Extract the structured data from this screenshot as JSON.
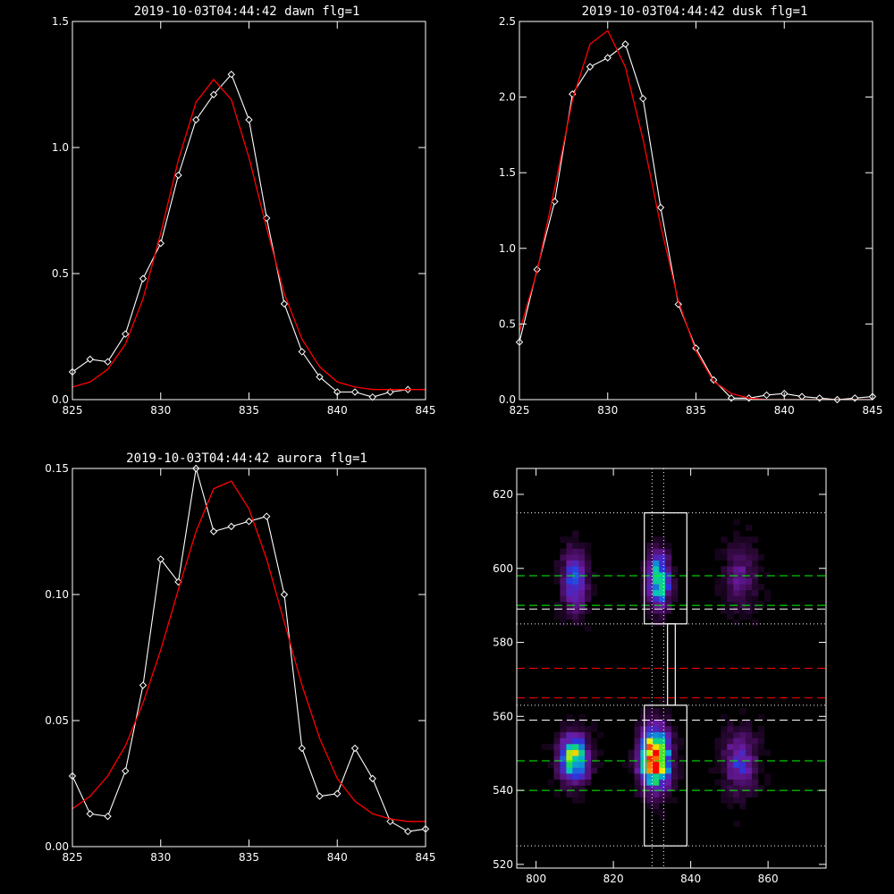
{
  "figure_background": "#000000",
  "chart_data": [
    {
      "type": "line",
      "title": "2019-10-03T04:44:42 dawn flg=1",
      "xlim": [
        825,
        845
      ],
      "ylim": [
        0,
        1.5
      ],
      "xticks": [
        825,
        830,
        835,
        840,
        845
      ],
      "yticks": [
        0.0,
        0.5,
        1.0,
        1.5
      ],
      "xtick_labels": [
        "825",
        "830",
        "835",
        "840",
        "845"
      ],
      "ytick_labels": [
        "0.0",
        "0.5",
        "1.0",
        "1.5"
      ],
      "series": [
        {
          "color": "#ffffff",
          "marker": "diamond",
          "x": [
            825,
            826,
            827,
            828,
            829,
            830,
            831,
            832,
            833,
            834,
            835,
            836,
            837,
            838,
            839,
            840,
            841,
            842,
            843,
            844
          ],
          "y": [
            0.11,
            0.16,
            0.15,
            0.26,
            0.48,
            0.62,
            0.89,
            1.11,
            1.21,
            1.29,
            1.11,
            0.72,
            0.38,
            0.19,
            0.09,
            0.03,
            0.03,
            0.01,
            0.03,
            0.04
          ]
        },
        {
          "color": "#ff0000",
          "x": [
            825,
            826,
            827,
            828,
            829,
            830,
            831,
            832,
            833,
            834,
            835,
            836,
            837,
            838,
            839,
            840,
            841,
            842,
            843,
            844,
            845
          ],
          "y": [
            0.05,
            0.07,
            0.12,
            0.22,
            0.4,
            0.66,
            0.95,
            1.18,
            1.27,
            1.19,
            0.96,
            0.68,
            0.42,
            0.24,
            0.13,
            0.07,
            0.05,
            0.04,
            0.04,
            0.04,
            0.04
          ]
        }
      ]
    },
    {
      "type": "line",
      "title": "2019-10-03T04:44:42 dusk flg=1",
      "xlim": [
        825,
        845
      ],
      "ylim": [
        0,
        2.5
      ],
      "xticks": [
        825,
        830,
        835,
        840,
        845
      ],
      "yticks": [
        0.0,
        0.5,
        1.0,
        1.5,
        2.0,
        2.5
      ],
      "xtick_labels": [
        "825",
        "830",
        "835",
        "840",
        "845"
      ],
      "ytick_labels": [
        "0.0",
        "0.5",
        "1.0",
        "1.5",
        "2.0",
        "2.5"
      ],
      "series": [
        {
          "color": "#ffffff",
          "marker": "diamond",
          "x": [
            825,
            826,
            827,
            828,
            829,
            830,
            831,
            832,
            833,
            834,
            835,
            836,
            837,
            838,
            839,
            840,
            841,
            842,
            843,
            844,
            845
          ],
          "y": [
            0.38,
            0.86,
            1.31,
            2.02,
            2.2,
            2.26,
            2.35,
            1.99,
            1.27,
            0.63,
            0.34,
            0.13,
            0.01,
            0.01,
            0.03,
            0.04,
            0.02,
            0.01,
            0.0,
            0.01,
            0.02
          ]
        },
        {
          "color": "#ff0000",
          "x": [
            825,
            826,
            827,
            828,
            829,
            830,
            831,
            832,
            833,
            834,
            835,
            836,
            837,
            838,
            839,
            840,
            841,
            842,
            843,
            844,
            845
          ],
          "y": [
            0.45,
            0.85,
            1.4,
            1.98,
            2.35,
            2.44,
            2.2,
            1.72,
            1.15,
            0.65,
            0.32,
            0.12,
            0.04,
            0.01,
            0.0,
            0.0,
            0.0,
            0.0,
            0.0,
            0.0,
            0.0
          ]
        }
      ]
    },
    {
      "type": "line",
      "title": "2019-10-03T04:44:42 aurora flg=1",
      "xlim": [
        825,
        845
      ],
      "ylim": [
        0,
        0.15
      ],
      "xticks": [
        825,
        830,
        835,
        840,
        845
      ],
      "yticks": [
        0.0,
        0.05,
        0.1,
        0.15
      ],
      "xtick_labels": [
        "825",
        "830",
        "835",
        "840",
        "845"
      ],
      "ytick_labels": [
        "0.00",
        "0.05",
        "0.10",
        "0.15"
      ],
      "series": [
        {
          "color": "#ffffff",
          "marker": "diamond",
          "x": [
            825,
            826,
            827,
            828,
            829,
            830,
            831,
            832,
            833,
            834,
            835,
            836,
            837,
            838,
            839,
            840,
            841,
            842,
            843,
            844,
            845
          ],
          "y": [
            0.028,
            0.013,
            0.012,
            0.03,
            0.064,
            0.114,
            0.105,
            0.15,
            0.125,
            0.127,
            0.129,
            0.131,
            0.1,
            0.039,
            0.02,
            0.021,
            0.039,
            0.027,
            0.01,
            0.006,
            0.007
          ]
        },
        {
          "color": "#ff0000",
          "x": [
            825,
            826,
            827,
            828,
            829,
            830,
            831,
            832,
            833,
            834,
            835,
            836,
            837,
            838,
            839,
            840,
            841,
            842,
            843,
            844,
            845
          ],
          "y": [
            0.015,
            0.02,
            0.028,
            0.04,
            0.057,
            0.078,
            0.102,
            0.125,
            0.142,
            0.145,
            0.134,
            0.114,
            0.089,
            0.064,
            0.043,
            0.027,
            0.018,
            0.013,
            0.011,
            0.01,
            0.01
          ]
        }
      ]
    },
    {
      "type": "heatmap",
      "title": "",
      "xlim": [
        795,
        875
      ],
      "ylim": [
        519,
        627
      ],
      "xticks": [
        800,
        820,
        840,
        860
      ],
      "yticks": [
        520,
        540,
        560,
        580,
        600,
        620
      ],
      "xtick_labels": [
        "800",
        "820",
        "840",
        "860"
      ],
      "ytick_labels": [
        "520",
        "540",
        "560",
        "580",
        "600",
        "620"
      ],
      "colormap": [
        "#000000",
        "#3a0a4a",
        "#6a1aa0",
        "#2a36e0",
        "#00c0d0",
        "#20e040",
        "#f0f000",
        "#ff8000",
        "#ff0000"
      ],
      "pixel_size": [
        1.6,
        1.6
      ],
      "blobs": [
        {
          "x": 809,
          "y": 548,
          "sx": 2.6,
          "sy": 4.5,
          "amp": 0.66
        },
        {
          "x": 809,
          "y": 596,
          "sx": 2.2,
          "sy": 5.5,
          "amp": 0.42
        },
        {
          "x": 830,
          "y": 548,
          "sx": 2.6,
          "sy": 5.5,
          "amp": 1.0
        },
        {
          "x": 831,
          "y": 596,
          "sx": 2.0,
          "sy": 5.0,
          "amp": 0.62
        },
        {
          "x": 852,
          "y": 547,
          "sx": 3.0,
          "sy": 6.0,
          "amp": 0.3
        },
        {
          "x": 852,
          "y": 597,
          "sx": 3.0,
          "sy": 6.0,
          "amp": 0.2
        }
      ],
      "rectangles": [
        {
          "x0": 828,
          "x1": 839,
          "y0": 585,
          "y1": 615,
          "color": "#ffffff"
        },
        {
          "x0": 828,
          "x1": 839,
          "y0": 525,
          "y1": 563,
          "color": "#ffffff"
        },
        {
          "x0": 834,
          "x1": 836,
          "y0": 563,
          "y1": 585,
          "color": "#ffffff"
        }
      ],
      "hlines": [
        {
          "y": 615,
          "color": "#ffffff",
          "style": "dotted"
        },
        {
          "y": 598,
          "color": "#00ff00",
          "style": "dashed"
        },
        {
          "y": 590,
          "color": "#00ff00",
          "style": "dashed"
        },
        {
          "y": 589,
          "color": "#ffffff",
          "style": "dashed"
        },
        {
          "y": 585,
          "color": "#ffffff",
          "style": "dotted"
        },
        {
          "y": 573,
          "color": "#ff0000",
          "style": "dashed"
        },
        {
          "y": 565,
          "color": "#ff0000",
          "style": "dashed"
        },
        {
          "y": 563,
          "color": "#ffffff",
          "style": "dotted"
        },
        {
          "y": 559,
          "color": "#ffffff",
          "style": "dashed"
        },
        {
          "y": 548,
          "color": "#00ff00",
          "style": "dashed"
        },
        {
          "y": 540,
          "color": "#00ff00",
          "style": "dashed"
        },
        {
          "y": 525,
          "color": "#ffffff",
          "style": "dotted"
        }
      ],
      "vlines": [
        {
          "x": 830,
          "color": "#ffffff",
          "style": "dotted"
        },
        {
          "x": 833,
          "color": "#ffffff",
          "style": "dotted"
        }
      ]
    }
  ]
}
